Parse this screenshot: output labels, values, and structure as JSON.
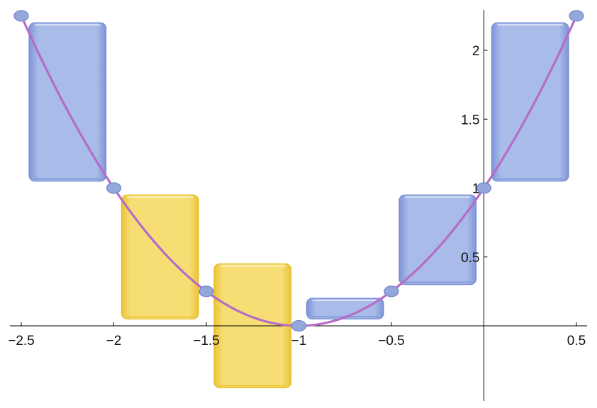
{
  "chart_data": {
    "type": "bar",
    "title": "",
    "xlabel": "",
    "ylabel": "",
    "xlim": [
      -2.5,
      0.5
    ],
    "ylim": [
      -0.45,
      2.3
    ],
    "x_ticks": [
      {
        "value": -2.5,
        "label": "−2.5"
      },
      {
        "value": -2.0,
        "label": "−2"
      },
      {
        "value": -1.5,
        "label": "−1.5"
      },
      {
        "value": -1.0,
        "label": "−1"
      },
      {
        "value": -0.5,
        "label": "−0.5"
      },
      {
        "value": 0.5,
        "label": "0.5"
      }
    ],
    "y_ticks": [
      {
        "value": 0.5,
        "label": "0.5"
      },
      {
        "value": 1.0,
        "label": "1"
      },
      {
        "value": 1.5,
        "label": "1.5"
      },
      {
        "value": 2.0,
        "label": "2"
      }
    ],
    "grid": false,
    "curve": {
      "function": "(x+1)^2",
      "x_range": [
        -2.5,
        0.5
      ],
      "color": "#b56cc6"
    },
    "points": [
      {
        "x": -2.5,
        "y": 2.25
      },
      {
        "x": -2.0,
        "y": 1.0
      },
      {
        "x": -1.5,
        "y": 0.25
      },
      {
        "x": -1.0,
        "y": 0.0
      },
      {
        "x": -0.5,
        "y": 0.25
      },
      {
        "x": 0.0,
        "y": 1.0
      },
      {
        "x": 0.5,
        "y": 2.25
      }
    ],
    "bars": [
      {
        "x0": -2.5,
        "x1": -2.0,
        "y0": 1.05,
        "y1": 2.2,
        "color": "blue"
      },
      {
        "x0": -2.0,
        "x1": -1.5,
        "y0": 0.05,
        "y1": 0.95,
        "color": "yellow"
      },
      {
        "x0": -1.5,
        "x1": -1.0,
        "y0": -0.45,
        "y1": 0.45,
        "color": "yellow"
      },
      {
        "x0": -1.0,
        "x1": -0.5,
        "y0": 0.05,
        "y1": 0.2,
        "color": "blue"
      },
      {
        "x0": -0.5,
        "x1": 0.0,
        "y0": 0.3,
        "y1": 0.95,
        "color": "blue"
      },
      {
        "x0": 0.0,
        "x1": 0.5,
        "y0": 1.05,
        "y1": 2.2,
        "color": "blue"
      }
    ],
    "colors": {
      "blue_fill": "#a7b9e6",
      "blue_edge": "#7088d4",
      "yellow_fill": "#f5dd6e",
      "yellow_edge": "#e6bb1e",
      "point_fill": "#93a7dc",
      "point_edge": "#6f86c8"
    }
  }
}
